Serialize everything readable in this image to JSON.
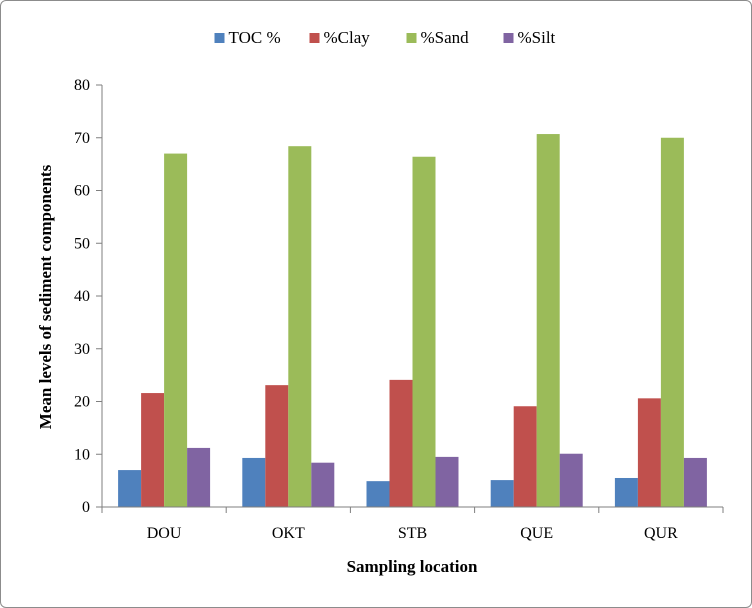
{
  "chart_data": {
    "type": "bar",
    "title": "",
    "xlabel": "Sampling location",
    "ylabel": "Mean levels of sediment components",
    "categories": [
      "DOU",
      "OKT",
      "STB",
      "QUE",
      "QUR"
    ],
    "ylim": [
      0,
      80
    ],
    "yticks": [
      0,
      10,
      20,
      30,
      40,
      50,
      60,
      70,
      80
    ],
    "grid": false,
    "legend_position": "top",
    "series": [
      {
        "name": "TOC %",
        "color": "#4f81bd",
        "values": [
          7.0,
          9.3,
          4.9,
          5.1,
          5.5
        ]
      },
      {
        "name": "%Clay",
        "color": "#c0504d",
        "values": [
          21.6,
          23.1,
          24.1,
          19.1,
          20.6
        ]
      },
      {
        "name": "%Sand",
        "color": "#9bbb59",
        "values": [
          67.0,
          68.4,
          66.4,
          70.7,
          70.0
        ]
      },
      {
        "name": "%Silt",
        "color": "#8064a2",
        "values": [
          11.2,
          8.4,
          9.5,
          10.1,
          9.3
        ]
      }
    ]
  }
}
